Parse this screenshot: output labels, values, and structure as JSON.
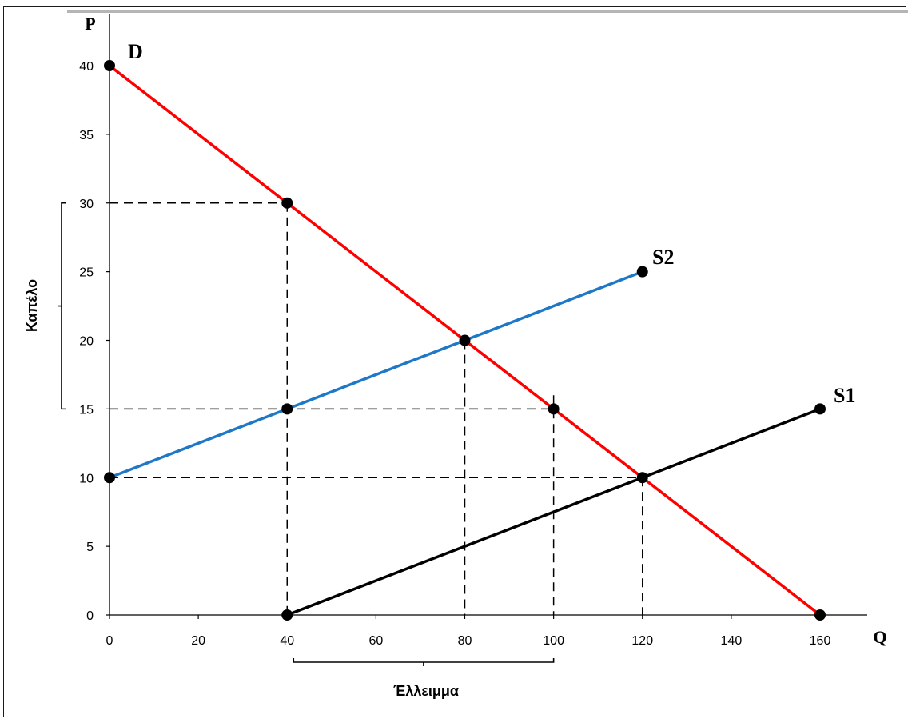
{
  "chart_data": {
    "type": "line",
    "xlabel": "Q",
    "ylabel": "P",
    "xlim": [
      0,
      160
    ],
    "ylim": [
      0,
      40
    ],
    "x_ticks": [
      "0",
      "20",
      "40",
      "60",
      "80",
      "100",
      "120",
      "140",
      "160"
    ],
    "y_ticks": [
      "0",
      "5",
      "10",
      "15",
      "20",
      "25",
      "30",
      "35",
      "40"
    ],
    "grid": false,
    "series": [
      {
        "name": "D",
        "color": "#ff0000",
        "points": [
          [
            0,
            40
          ],
          [
            160,
            0
          ]
        ]
      },
      {
        "name": "S2",
        "color": "#1e78c8",
        "points": [
          [
            0,
            10
          ],
          [
            120,
            25
          ]
        ]
      },
      {
        "name": "S1",
        "color": "#000000",
        "points": [
          [
            40,
            0
          ],
          [
            160,
            15
          ]
        ]
      }
    ],
    "marked_points": [
      [
        0,
        40
      ],
      [
        40,
        30
      ],
      [
        80,
        20
      ],
      [
        40,
        15
      ],
      [
        100,
        15
      ],
      [
        0,
        10
      ],
      [
        120,
        10
      ],
      [
        120,
        25
      ],
      [
        160,
        15
      ],
      [
        40,
        0
      ],
      [
        160,
        0
      ]
    ],
    "guides": [
      {
        "from": [
          0,
          30
        ],
        "to": [
          40,
          30
        ]
      },
      {
        "from": [
          40,
          30
        ],
        "to": [
          40,
          0
        ]
      },
      {
        "from": [
          0,
          15
        ],
        "to": [
          100,
          15
        ]
      },
      {
        "from": [
          0,
          10
        ],
        "to": [
          120,
          10
        ]
      },
      {
        "from": [
          80,
          20
        ],
        "to": [
          80,
          0
        ]
      },
      {
        "from": [
          100,
          16
        ],
        "to": [
          100,
          0
        ]
      },
      {
        "from": [
          120,
          10
        ],
        "to": [
          120,
          0
        ]
      }
    ],
    "annotations": {
      "vertical_brace": {
        "label": "Καπέλο",
        "range": [
          15,
          30
        ]
      },
      "horizontal_brace": {
        "label": "Έλλειμμα",
        "range": [
          40,
          100
        ]
      }
    }
  }
}
